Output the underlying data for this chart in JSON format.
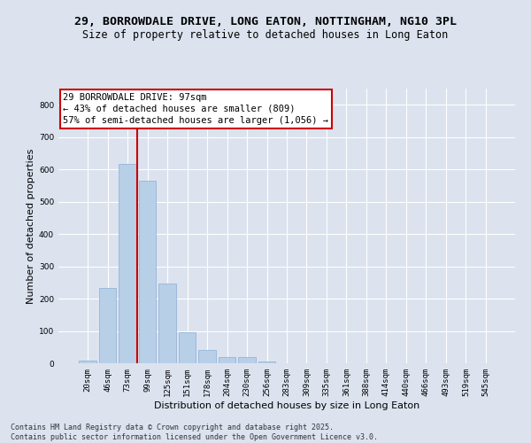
{
  "title_line1": "29, BORROWDALE DRIVE, LONG EATON, NOTTINGHAM, NG10 3PL",
  "title_line2": "Size of property relative to detached houses in Long Eaton",
  "xlabel": "Distribution of detached houses by size in Long Eaton",
  "ylabel": "Number of detached properties",
  "background_color": "#dce3ef",
  "bar_color": "#b8cfe8",
  "bar_edge_color": "#8aadd4",
  "grid_color": "#ffffff",
  "categories": [
    "20sqm",
    "46sqm",
    "73sqm",
    "99sqm",
    "125sqm",
    "151sqm",
    "178sqm",
    "204sqm",
    "230sqm",
    "256sqm",
    "283sqm",
    "309sqm",
    "335sqm",
    "361sqm",
    "388sqm",
    "414sqm",
    "440sqm",
    "466sqm",
    "493sqm",
    "519sqm",
    "545sqm"
  ],
  "values": [
    8,
    232,
    618,
    565,
    248,
    95,
    42,
    18,
    18,
    5,
    0,
    0,
    0,
    0,
    0,
    0,
    0,
    0,
    0,
    0,
    0
  ],
  "ylim": [
    0,
    850
  ],
  "yticks": [
    0,
    100,
    200,
    300,
    400,
    500,
    600,
    700,
    800
  ],
  "vline_color": "#cc0000",
  "vline_x_index": 3,
  "annotation_text": "29 BORROWDALE DRIVE: 97sqm\n← 43% of detached houses are smaller (809)\n57% of semi-detached houses are larger (1,056) →",
  "annotation_box_color": "#ffffff",
  "annotation_box_edge": "#cc0000",
  "footer_line1": "Contains HM Land Registry data © Crown copyright and database right 2025.",
  "footer_line2": "Contains public sector information licensed under the Open Government Licence v3.0.",
  "title_fontsize": 9.5,
  "subtitle_fontsize": 8.5,
  "axis_label_fontsize": 8,
  "tick_fontsize": 6.5,
  "annotation_fontsize": 7.5,
  "footer_fontsize": 6
}
